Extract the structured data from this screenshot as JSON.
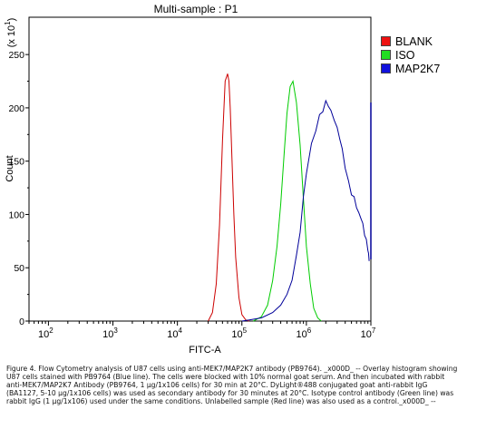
{
  "chart_data": {
    "type": "line",
    "title": "Multi-sample : P1",
    "xlabel": "FITC-A",
    "ylabel": "Count",
    "y_multiplier_label": "(x 10",
    "y_multiplier_exp": "1",
    "x_scale": "log",
    "xlim": [
      50,
      10000000
    ],
    "ylim": [
      0,
      285
    ],
    "x_ticks": [
      {
        "base": "10",
        "exp": "2",
        "value": 100
      },
      {
        "base": "10",
        "exp": "3",
        "value": 1000
      },
      {
        "base": "10",
        "exp": "4",
        "value": 10000
      },
      {
        "base": "10",
        "exp": "5",
        "value": 100000
      },
      {
        "base": "10",
        "exp": "6",
        "value": 1000000
      },
      {
        "base": "10",
        "exp": "7",
        "value": 10000000
      }
    ],
    "y_ticks": [
      "0",
      "50",
      "100",
      "150",
      "200",
      "250"
    ],
    "y_tick_values": [
      0,
      50,
      100,
      150,
      200,
      250
    ],
    "legend_position": "right",
    "series": [
      {
        "name": "BLANK",
        "color": "#cc0000",
        "x": [
          30000,
          35000,
          40000,
          45000,
          50000,
          55000,
          60000,
          63000,
          66000,
          70000,
          75000,
          80000,
          90000,
          100000,
          115000,
          130000
        ],
        "y": [
          0,
          8,
          35,
          90,
          170,
          225,
          232,
          225,
          200,
          155,
          100,
          60,
          22,
          6,
          1,
          0
        ]
      },
      {
        "name": "ISO",
        "color": "#00cc00",
        "x": [
          150000,
          200000,
          250000,
          300000,
          350000,
          400000,
          450000,
          500000,
          560000,
          620000,
          700000,
          800000,
          900000,
          1000000,
          1150000,
          1300000,
          1500000,
          1700000
        ],
        "y": [
          0,
          4,
          15,
          38,
          70,
          110,
          155,
          195,
          220,
          225,
          205,
          165,
          115,
          70,
          35,
          12,
          3,
          0
        ]
      },
      {
        "name": "MAP2K7",
        "color": "#000099",
        "x": [
          100000,
          130000,
          200000,
          300000,
          400000,
          500000,
          600000,
          700000,
          800000,
          900000,
          1000000,
          1200000,
          1400000,
          1600000,
          1800000,
          2000000,
          2200000,
          2400000,
          2700000,
          3000000,
          3300000,
          3600000,
          4000000,
          4500000,
          5000000,
          5500000,
          6000000,
          6500000,
          7000000,
          7500000,
          8000000,
          8500000,
          9000000,
          9200000,
          9400000
        ],
        "y": [
          0,
          1,
          3,
          8,
          15,
          25,
          40,
          60,
          85,
          115,
          140,
          165,
          180,
          192,
          198,
          205,
          203,
          196,
          190,
          180,
          172,
          160,
          145,
          130,
          120,
          115,
          108,
          100,
          98,
          90,
          82,
          75,
          68,
          62,
          58
        ]
      }
    ]
  },
  "legend": [
    {
      "label": "BLANK",
      "color": "#ee1111"
    },
    {
      "label": "ISO",
      "color": "#22dd22"
    },
    {
      "label": "MAP2K7",
      "color": "#1111dd"
    }
  ],
  "caption": "Figure 4. Flow Cytometry analysis of U87 cells using anti-MEK7/MAP2K7 antibody (PB9764). _x000D_ -- Overlay histogram showing U87 cells stained with PB9764 (Blue line). The cells were blocked with 10% normal goat serum. And then incubated with rabbit anti-MEK7/MAP2K7 Antibody (PB9764, 1 µg/1x106 cells) for 30 min at 20°C. DyLight®488 conjugated goat anti-rabbit IgG (BA1127, 5-10 µg/1x106 cells) was used as secondary antibody for 30 minutes at 20°C. Isotype control antibody (Green line) was rabbit IgG (1 µg/1x106) used under the same conditions. Unlabelled sample (Red line) was also used as a control._x000D_ --"
}
